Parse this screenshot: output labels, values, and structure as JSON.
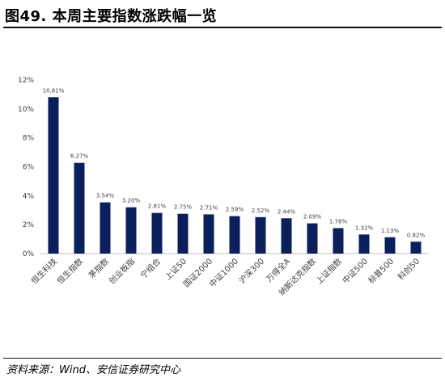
{
  "figure": {
    "title": "图49. 本周主要指数涨跌幅一览",
    "source": "资料来源：Wind、安信证券研究中心"
  },
  "chart_data": {
    "type": "bar",
    "categories": [
      "恒生科技",
      "恒生指数",
      "茅指数",
      "创业板指",
      "宁组合",
      "上证50",
      "国证2000",
      "中证1000",
      "沪深300",
      "万得全A",
      "纳斯达克指数",
      "上证指数",
      "中证500",
      "标普500",
      "科创50"
    ],
    "values": [
      10.81,
      6.27,
      3.54,
      3.2,
      2.81,
      2.75,
      2.71,
      2.59,
      2.52,
      2.44,
      2.09,
      1.76,
      1.32,
      1.13,
      0.82
    ],
    "value_labels": [
      "10.81%",
      "6.27%",
      "3.54%",
      "3.20%",
      "2.81%",
      "2.75%",
      "2.71%",
      "2.59%",
      "2.52%",
      "2.44%",
      "2.09%",
      "1.76%",
      "1.32%",
      "1.13%",
      "0.82%"
    ],
    "ylim": [
      0,
      12
    ],
    "yticks": [
      0,
      2,
      4,
      6,
      8,
      10,
      12
    ],
    "ytick_labels": [
      "0%",
      "2%",
      "4%",
      "6%",
      "8%",
      "10%",
      "12%"
    ],
    "title": "",
    "xlabel": "",
    "ylabel": "",
    "grid": false,
    "bar_color": "#0a1f5c"
  }
}
